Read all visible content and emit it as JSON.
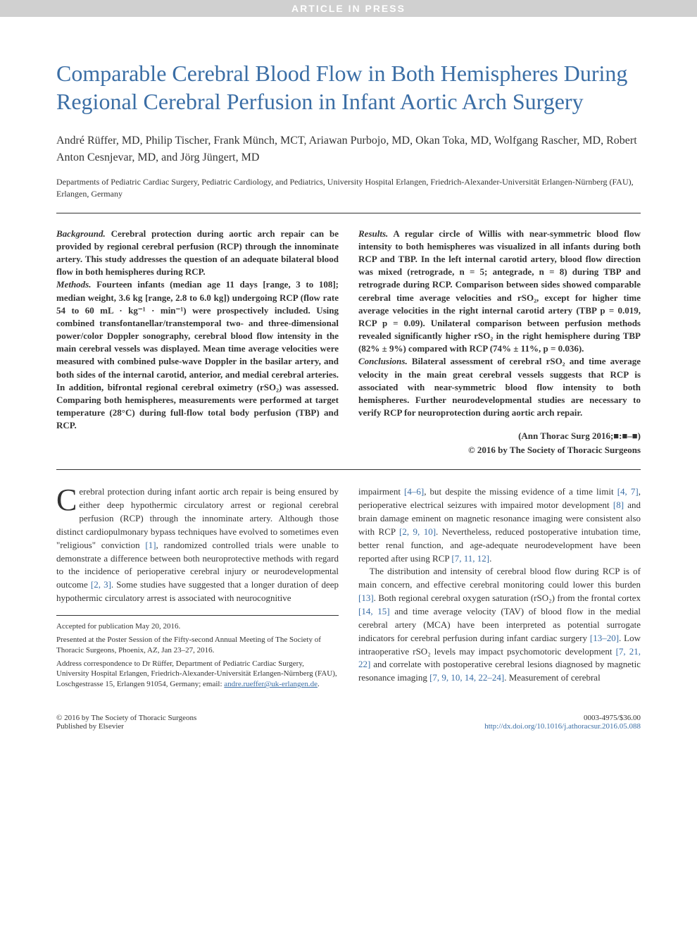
{
  "banner": "ARTICLE IN PRESS",
  "title": "Comparable Cerebral Blood Flow in Both Hemispheres During Regional Cerebral Perfusion in Infant Aortic Arch Surgery",
  "authors": "André Rüffer, MD, Philip Tischer, Frank Münch, MCT, Ariawan Purbojo, MD, Okan Toka, MD, Wolfgang Rascher, MD, Robert Anton Cesnjevar, MD, and Jörg Jüngert, MD",
  "affiliations": "Departments of Pediatric Cardiac Surgery, Pediatric Cardiology, and Pediatrics, University Hospital Erlangen, Friedrich-Alexander-Universität Erlangen-Nürnberg (FAU), Erlangen, Germany",
  "abstract": {
    "background_label": "Background.",
    "background": " Cerebral protection during aortic arch repair can be provided by regional cerebral perfusion (RCP) through the innominate artery. This study addresses the question of an adequate bilateral blood flow in both hemispheres during RCP.",
    "methods_label": "Methods.",
    "methods": " Fourteen infants (median age 11 days [range, 3 to 108]; median weight, 3.6 kg [range, 2.8 to 6.0 kg]) undergoing RCP (flow rate 54 to 60 mL · kg⁻¹ · min⁻¹) were prospectively included. Using combined transfontanellar/transtemporal two- and three-dimensional power/color Doppler sonography, cerebral blood flow intensity in the main cerebral vessels was displayed. Mean time average velocities were measured with combined pulse-wave Doppler in the basilar artery, and both sides of the internal carotid, anterior, and medial cerebral arteries. In addition, bifrontal regional cerebral oximetry (rSO₂) was assessed. Comparing both hemispheres, measurements were performed at target temperature (28°C) during full-flow total body perfusion (TBP) and RCP.",
    "results_label": "Results.",
    "results": " A regular circle of Willis with near-symmetric blood flow intensity to both hemispheres was visualized in all infants during both RCP and TBP. In the left internal carotid artery, blood flow direction was mixed (retrograde, n = 5; antegrade, n = 8) during TBP and retrograde during RCP. Comparison between sides showed comparable cerebral time average velocities and rSO₂, except for higher time average velocities in the right internal carotid artery (TBP p = 0.019, RCP p = 0.09). Unilateral comparison between perfusion methods revealed significantly higher rSO₂ in the right hemisphere during TBP (82% ± 9%) compared with RCP (74% ± 11%, p = 0.036).",
    "conclusions_label": "Conclusions.",
    "conclusions": " Bilateral assessment of cerebral rSO₂ and time average velocity in the main great cerebral vessels suggests that RCP is associated with near-symmetric blood flow intensity to both hemispheres. Further neurodevelopmental studies are necessary to verify RCP for neuroprotection during aortic arch repair."
  },
  "citation": {
    "line1": "(Ann Thorac Surg 2016;■:■–■)",
    "line2": "© 2016 by The Society of Thoracic Surgeons"
  },
  "body": {
    "drop_cap": "C",
    "para1_rest": "erebral protection during infant aortic arch repair is being ensured by either deep hypothermic circulatory arrest or regional cerebral perfusion (RCP) through the innominate artery. Although those distinct cardiopulmonary bypass techniques have evolved to sometimes even \"religious\" conviction ",
    "ref1": "[1]",
    "para1_after_ref1": ", randomized controlled trials were unable to demonstrate a difference between both neuroprotective methods with regard to the incidence of perioperative cerebral injury or neurodevelopmental outcome ",
    "ref2_3": "[2, 3]",
    "para1_after_ref23": ". Some studies have suggested that a longer duration of deep hypothermic circulatory arrest is associated with neurocognitive",
    "para2_start": "impairment ",
    "ref4_6": "[4–6]",
    "para2_a": ", but despite the missing evidence of a time limit ",
    "ref4_7": "[4, 7]",
    "para2_b": ", perioperative electrical seizures with impaired motor development ",
    "ref8": "[8]",
    "para2_c": " and brain damage eminent on magnetic resonance imaging were consistent also with RCP ",
    "ref2_9_10": "[2, 9, 10]",
    "para2_d": ". Nevertheless, reduced postoperative intubation time, better renal function, and age-adequate neurodevelopment have been reported after using RCP ",
    "ref7_11_12": "[7, 11, 12]",
    "para2_e": ".",
    "para3_a": "The distribution and intensity of cerebral blood flow during RCP is of main concern, and effective cerebral monitoring could lower this burden ",
    "ref13": "[13]",
    "para3_b": ". Both regional cerebral oxygen saturation (rSO₂) from the frontal cortex ",
    "ref14_15": "[14, 15]",
    "para3_c": " and time average velocity (TAV) of blood flow in the medial cerebral artery (MCA) have been interpreted as potential surrogate indicators for cerebral perfusion during infant cardiac surgery ",
    "ref13_20": "[13–20]",
    "para3_d": ". Low intraoperative rSO₂ levels may impact psychomotoric development ",
    "ref7_21_22": "[7, 21, 22]",
    "para3_e": " and correlate with postoperative cerebral lesions diagnosed by magnetic resonance imaging ",
    "ref_7_9_10_14_22_24": "[7, 9, 10, 14, 22–24]",
    "para3_f": ". Measurement of cerebral"
  },
  "footnotes": {
    "accepted": "Accepted for publication May 20, 2016.",
    "presented": "Presented at the Poster Session of the Fifty-second Annual Meeting of The Society of Thoracic Surgeons, Phoenix, AZ, Jan 23–27, 2016.",
    "correspondence": "Address correspondence to Dr Rüffer, Department of Pediatric Cardiac Surgery, University Hospital Erlangen, Friedrich-Alexander-Universität Erlangen-Nürnberg (FAU), Loschgestrasse 15, Erlangen 91054, Germany; email: ",
    "email": "andre.rueffer@uk-erlangen.de",
    "period": "."
  },
  "footer": {
    "left1": "© 2016 by The Society of Thoracic Surgeons",
    "left2": "Published by Elsevier",
    "right1": "0003-4975/$36.00",
    "right2": "http://dx.doi.org/10.1016/j.athoracsur.2016.05.088"
  }
}
